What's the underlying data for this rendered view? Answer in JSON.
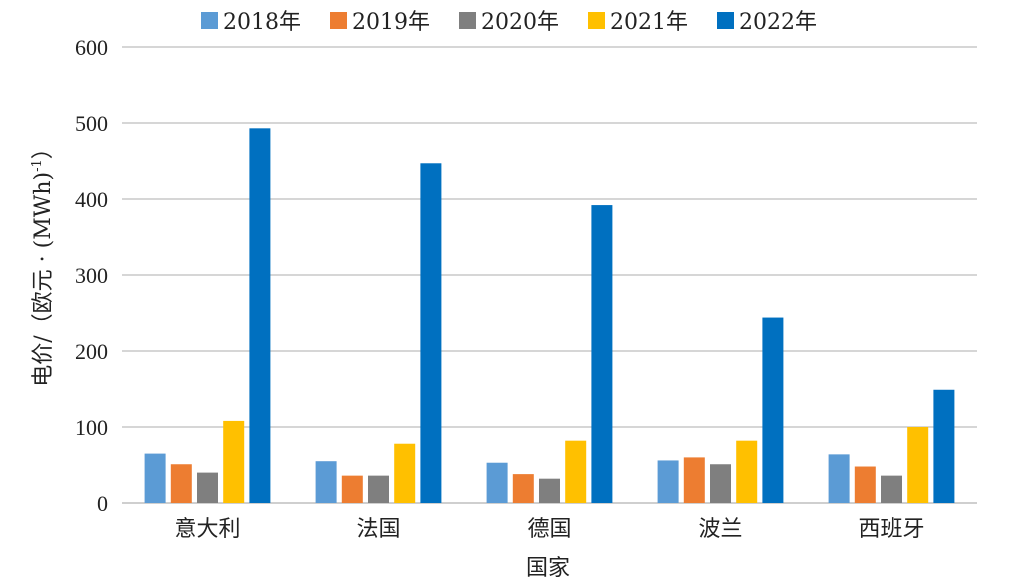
{
  "chart_data": {
    "type": "bar",
    "categories": [
      "意大利",
      "法国",
      "德国",
      "波兰",
      "西班牙"
    ],
    "series": [
      {
        "name": "2018年",
        "color": "#5B9BD5",
        "values": [
          65,
          55,
          53,
          56,
          64
        ]
      },
      {
        "name": "2019年",
        "color": "#ED7D31",
        "values": [
          51,
          36,
          38,
          60,
          48
        ]
      },
      {
        "name": "2020年",
        "color": "#7F7F7F",
        "values": [
          40,
          36,
          32,
          51,
          36
        ]
      },
      {
        "name": "2021年",
        "color": "#FFC000",
        "values": [
          108,
          78,
          82,
          82,
          100
        ]
      },
      {
        "name": "2022年",
        "color": "#0070C0",
        "values": [
          493,
          447,
          392,
          244,
          149
        ]
      }
    ],
    "xlabel": "国家",
    "ylabel": "电价/（欧元 · (MWh)",
    "ylabel_superscript": "-1",
    "ylabel_close": "）",
    "ylim": [
      0,
      600
    ],
    "yticks": [
      "0",
      "100",
      "200",
      "300",
      "400",
      "500",
      "600"
    ],
    "grid": true,
    "legend_position": "top"
  }
}
